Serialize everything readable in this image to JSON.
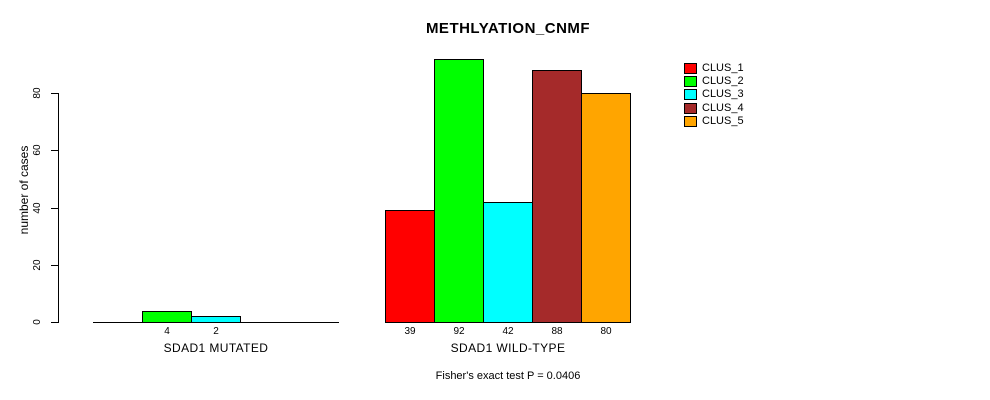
{
  "chart_data": {
    "type": "bar",
    "title": "METHLYATION_CNMF",
    "ylabel": "number of cases",
    "caption": "Fisher's exact test P = 0.0406",
    "categories": [
      "SDAD1 MUTATED",
      "SDAD1 WILD-TYPE"
    ],
    "series": [
      {
        "name": "CLUS_1",
        "color": "#ff0000",
        "values": [
          0,
          39
        ]
      },
      {
        "name": "CLUS_2",
        "color": "#00ff00",
        "values": [
          4,
          92
        ]
      },
      {
        "name": "CLUS_3",
        "color": "#00ffff",
        "values": [
          2,
          42
        ]
      },
      {
        "name": "CLUS_4",
        "color": "#a52a2a",
        "values": [
          0,
          88
        ]
      },
      {
        "name": "CLUS_5",
        "color": "#ffa500",
        "values": [
          0,
          80
        ]
      }
    ],
    "y_ticks": [
      0,
      20,
      40,
      60,
      80
    ],
    "ylim": [
      0,
      92
    ],
    "grid": false,
    "legend_position": "right",
    "bar_value_labels": "shown under each nonzero bar",
    "axis_color": "#000000",
    "background_color": "#ffffff"
  }
}
